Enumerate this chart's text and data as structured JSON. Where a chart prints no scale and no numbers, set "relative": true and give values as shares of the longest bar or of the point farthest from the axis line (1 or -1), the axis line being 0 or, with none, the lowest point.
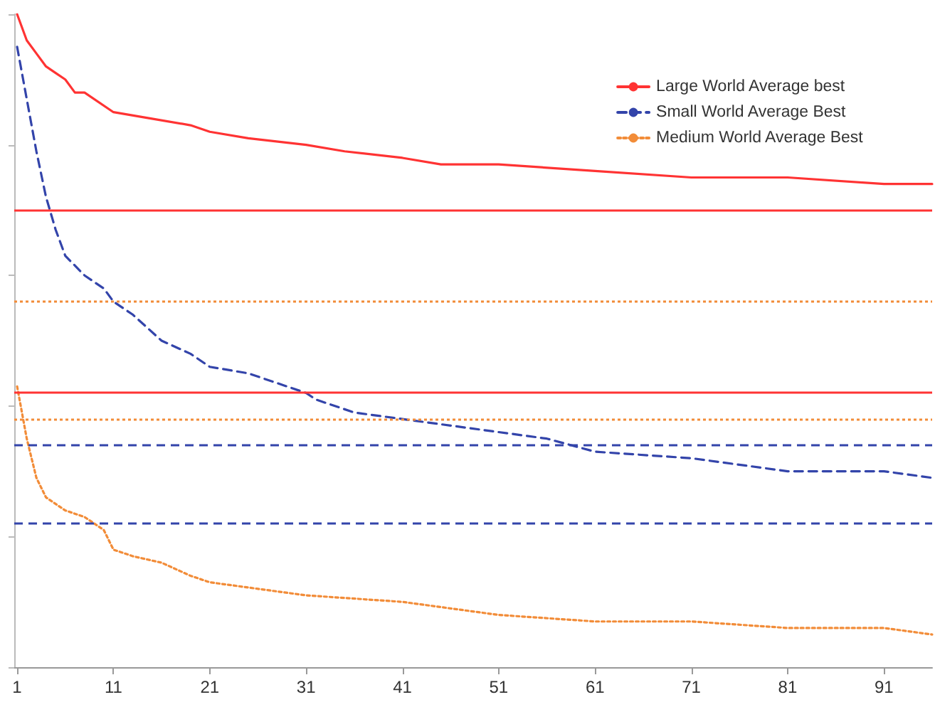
{
  "chart_data": {
    "type": "line",
    "relative": true,
    "xlim": [
      0.7,
      96
    ],
    "xticks": [
      1,
      11,
      21,
      31,
      41,
      51,
      61,
      71,
      81,
      91
    ],
    "legend": "top right",
    "marker": "none",
    "grid": false,
    "series": [
      {
        "name": "Large World Average best",
        "color": "#ff3333",
        "line_style": "solid",
        "x": [
          1,
          2,
          3,
          4,
          5,
          6,
          7,
          8,
          11,
          15,
          19,
          21,
          25,
          31,
          35,
          41,
          45,
          51,
          61,
          71,
          81,
          91,
          96
        ],
        "values": [
          1.0,
          0.96,
          0.94,
          0.92,
          0.91,
          0.9,
          0.88,
          0.88,
          0.85,
          0.84,
          0.83,
          0.82,
          0.81,
          0.8,
          0.79,
          0.78,
          0.77,
          0.77,
          0.76,
          0.75,
          0.75,
          0.74,
          0.74
        ]
      },
      {
        "name": "Small World Average Best",
        "color": "#3344aa",
        "line_style": "dashed",
        "x": [
          1,
          2,
          3,
          4,
          5,
          6,
          8,
          10,
          11,
          13,
          16,
          19,
          21,
          25,
          31,
          32,
          36,
          41,
          46,
          51,
          56,
          61,
          71,
          81,
          91,
          96
        ],
        "values": [
          0.95,
          0.87,
          0.79,
          0.72,
          0.67,
          0.63,
          0.6,
          0.58,
          0.56,
          0.54,
          0.5,
          0.48,
          0.46,
          0.45,
          0.42,
          0.41,
          0.39,
          0.38,
          0.37,
          0.36,
          0.35,
          0.33,
          0.32,
          0.3,
          0.3,
          0.29
        ]
      },
      {
        "name": "Medium World Average Best",
        "color": "#f28c38",
        "line_style": "dotted",
        "x": [
          1,
          2,
          3,
          4,
          6,
          8,
          10,
          11,
          13,
          16,
          19,
          21,
          26,
          31,
          41,
          51,
          61,
          71,
          81,
          91,
          96
        ],
        "values": [
          0.43,
          0.35,
          0.29,
          0.26,
          0.24,
          0.23,
          0.21,
          0.18,
          0.17,
          0.16,
          0.14,
          0.13,
          0.12,
          0.11,
          0.1,
          0.08,
          0.07,
          0.07,
          0.06,
          0.06,
          0.05
        ]
      }
    ],
    "ref_lines": [
      {
        "axis": "y",
        "value": 0.7,
        "color": "#ff3333",
        "line_style": "solid"
      },
      {
        "axis": "y",
        "value": 0.42,
        "color": "#ff3333",
        "line_style": "solid"
      },
      {
        "axis": "y",
        "value": 0.56,
        "color": "#f28c38",
        "line_style": "dotted"
      },
      {
        "axis": "y",
        "value": 0.38,
        "color": "#f28c38",
        "line_style": "dotted"
      },
      {
        "axis": "y",
        "value": 0.34,
        "color": "#3344aa",
        "line_style": "dashed"
      },
      {
        "axis": "y",
        "value": 0.22,
        "color": "#3344aa",
        "line_style": "dashed"
      }
    ]
  }
}
